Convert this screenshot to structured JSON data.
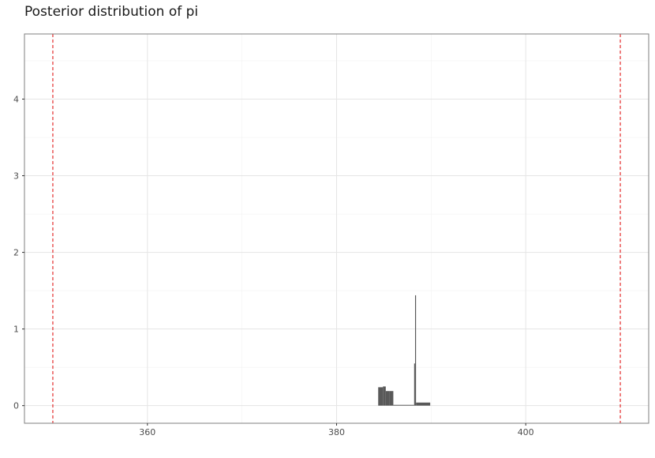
{
  "chart_data": {
    "type": "histogram",
    "title": "Posterior distribution of pi",
    "xlabel": "",
    "ylabel": "",
    "xlim": [
      347,
      413
    ],
    "ylim": [
      -0.23,
      4.85
    ],
    "x_ticks": [
      360,
      380,
      400
    ],
    "x_tick_labels": [
      "360",
      "380",
      "400"
    ],
    "y_ticks": [
      0,
      1,
      2,
      3,
      4
    ],
    "y_tick_labels": [
      "0",
      "1",
      "2",
      "3",
      "4"
    ],
    "grid": true,
    "bar_color": "#595959",
    "reference_line_color": "#e00000",
    "reference_lines": [
      350,
      410
    ],
    "bins": [
      {
        "x0": 384.4,
        "x1": 384.9,
        "density": 0.24
      },
      {
        "x0": 384.9,
        "x1": 385.2,
        "density": 0.25
      },
      {
        "x0": 385.2,
        "x1": 385.6,
        "density": 0.19
      },
      {
        "x0": 385.6,
        "x1": 386.0,
        "density": 0.19
      },
      {
        "x0": 386.0,
        "x1": 388.2,
        "density": 0.01
      },
      {
        "x0": 388.2,
        "x1": 388.3,
        "density": 0.55
      },
      {
        "x0": 388.3,
        "x1": 388.4,
        "density": 1.44
      },
      {
        "x0": 388.4,
        "x1": 389.9,
        "density": 0.04
      }
    ]
  }
}
